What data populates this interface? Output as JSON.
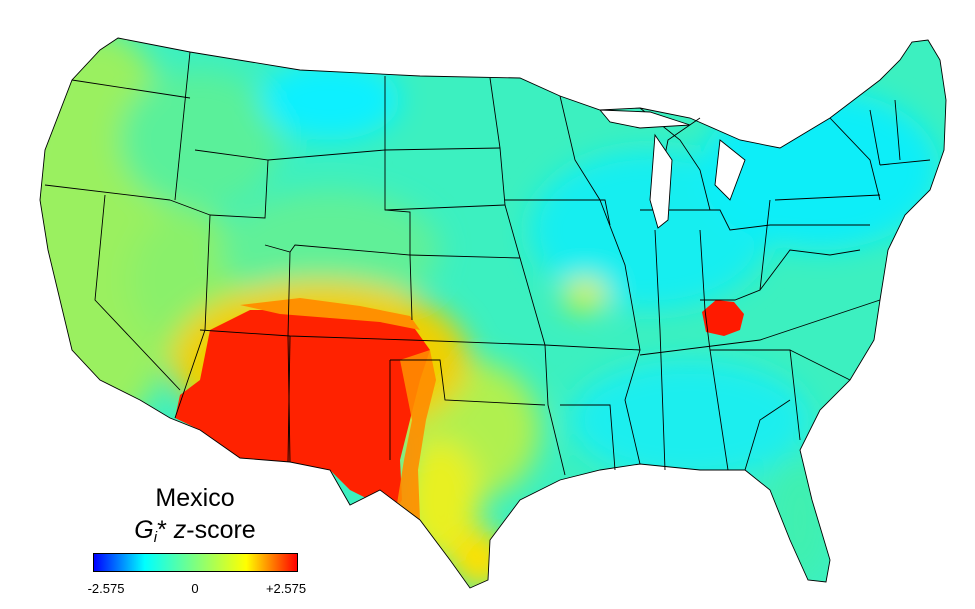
{
  "map": {
    "legend": {
      "title_line1": "Mexico",
      "symbol": "G",
      "symbol_subscript": "i",
      "symbol_suffix": "*",
      "score_var": "z",
      "score_suffix": "-score",
      "ticks": [
        "-2.575",
        "0",
        "+2.575"
      ],
      "colormap": [
        "#0000ff",
        "#00ffff",
        "#7fff7f",
        "#ffff00",
        "#ff0000"
      ]
    },
    "colors": {
      "hot": "#ff0000",
      "warm_orange": "#ff8c00",
      "yellow": "#ffff00",
      "yellow_green": "#c8f03c",
      "green": "#7ef27e",
      "teal": "#3cf0b4",
      "cyan": "#1ef0e6",
      "cyan_deep": "#00f0ff"
    },
    "regions": {
      "southwest_hotspot": "high",
      "kentucky_hotspot": "high",
      "missouri_spot": "medium",
      "pacific_coast": "medium-low",
      "northeast": "low",
      "southeast": "low"
    }
  }
}
